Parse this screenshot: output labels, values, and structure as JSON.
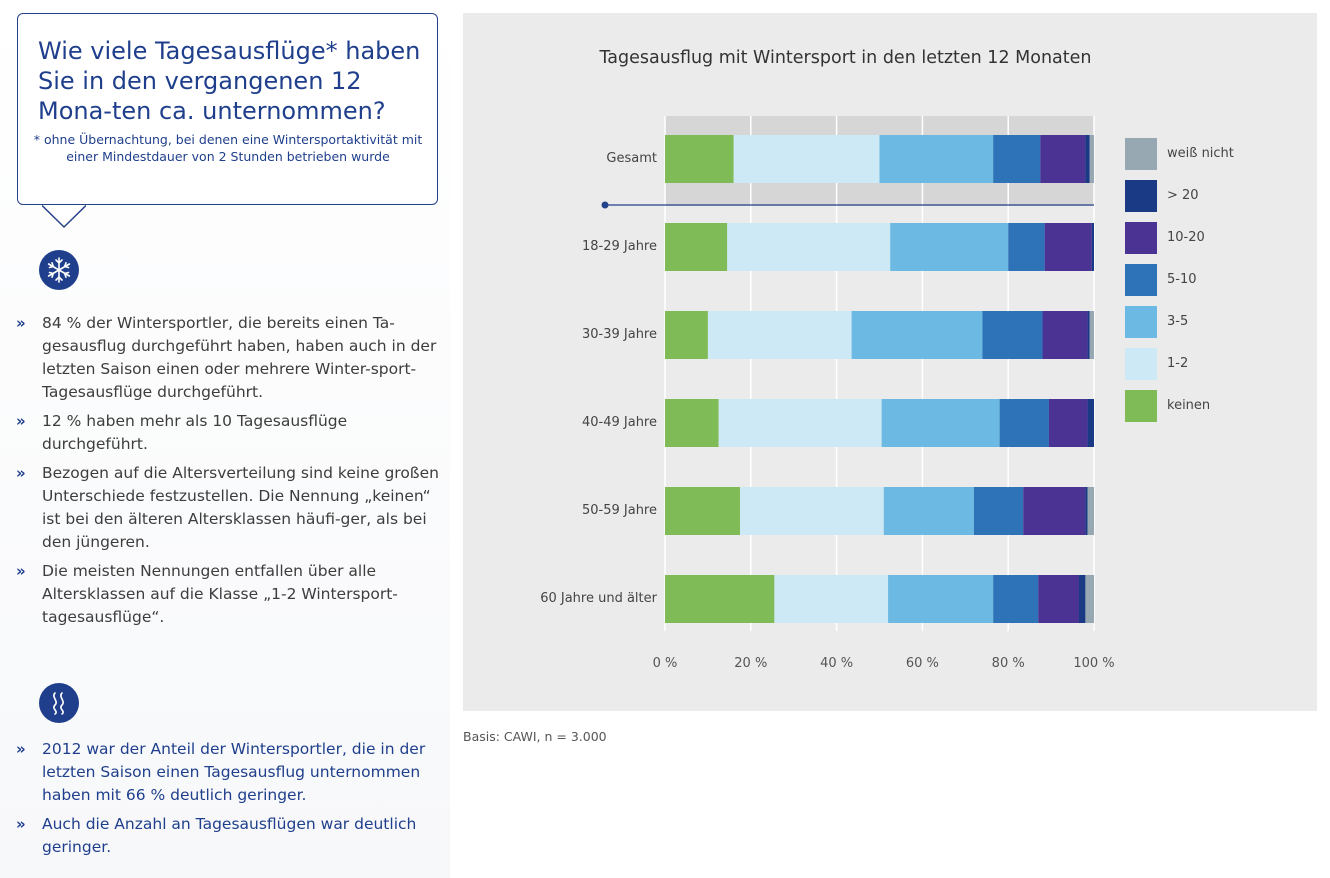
{
  "question": {
    "title": "Wie viele Tagesausflüge* haben Sie in den vergangenen 12 Mona-ten ca. unternommen?",
    "note": "* ohne Übernachtung, bei denen eine Wintersportaktivität mit einer Mindestdauer von 2 Stunden betrieben wurde"
  },
  "icons": {
    "top": "snowflake-icon",
    "bottom": "wind-waves-icon"
  },
  "bullets_gray": [
    "84 % der Wintersportler, die bereits einen Ta-gesausflug durchgeführt haben, haben auch in der letzten Saison einen oder mehrere Winter-sport-Tagesausflüge durchgeführt.",
    "12 % haben mehr als 10 Tagesausflüge durchgeführt.",
    "Bezogen auf die Altersverteilung sind keine großen Unterschiede festzustellen. Die Nennung „keinen“ ist bei den älteren Altersklassen häufi-ger, als bei den jüngeren.",
    "Die meisten Nennungen entfallen über alle Altersklassen auf die Klasse „1-2 Wintersport-tagesausflüge“."
  ],
  "bullets_blue": [
    "2012 war der Anteil der Wintersportler, die in der letzten Saison einen Tagesausflug unternommen haben mit 66 % deutlich geringer.",
    "Auch die Anzahl an Tagesausflügen war deutlich geringer."
  ],
  "basis": "Basis: CAWI, n = 3.000",
  "chart_data": {
    "type": "bar",
    "orientation": "horizontal",
    "stacked": true,
    "title": "Tagesausflug mit Wintersport in den letzten 12 Monaten",
    "xlabel": "",
    "ylabel": "",
    "xlim": [
      0,
      100
    ],
    "categories": [
      "Gesamt",
      "18-29 Jahre",
      "30-39 Jahre",
      "40-49 Jahre",
      "50-59 Jahre",
      "60 Jahre und älter"
    ],
    "ticks": [
      "0 %",
      "20 %",
      "40 %",
      "60 %",
      "80 %",
      "100 %"
    ],
    "legend_position": "right",
    "series": [
      {
        "name": "keinen",
        "color": "#7fbb56",
        "values": [
          16,
          14.5,
          10,
          12.5,
          17.5,
          25.5
        ]
      },
      {
        "name": "1-2",
        "color": "#cde9f6",
        "values": [
          34,
          38,
          33.5,
          38,
          33.5,
          26.5
        ]
      },
      {
        "name": "3-5",
        "color": "#6cbae3",
        "values": [
          26.5,
          27.5,
          30.5,
          27.5,
          21,
          24.5
        ]
      },
      {
        "name": "5-10",
        "color": "#2e72b8",
        "values": [
          11,
          8.5,
          14,
          11.5,
          11.5,
          10.5
        ]
      },
      {
        "name": "10-20",
        "color": "#4b3393",
        "values": [
          10.5,
          11,
          10.5,
          9,
          14.5,
          9.5
        ]
      },
      {
        "name": "> 20",
        "color": "#1a3a86",
        "values": [
          1,
          0.5,
          0.5,
          1.5,
          0.5,
          1.5
        ]
      },
      {
        "name": "weiß nicht",
        "color": "#98a8b2",
        "values": [
          1,
          0,
          1,
          0,
          1.5,
          2
        ]
      }
    ]
  }
}
